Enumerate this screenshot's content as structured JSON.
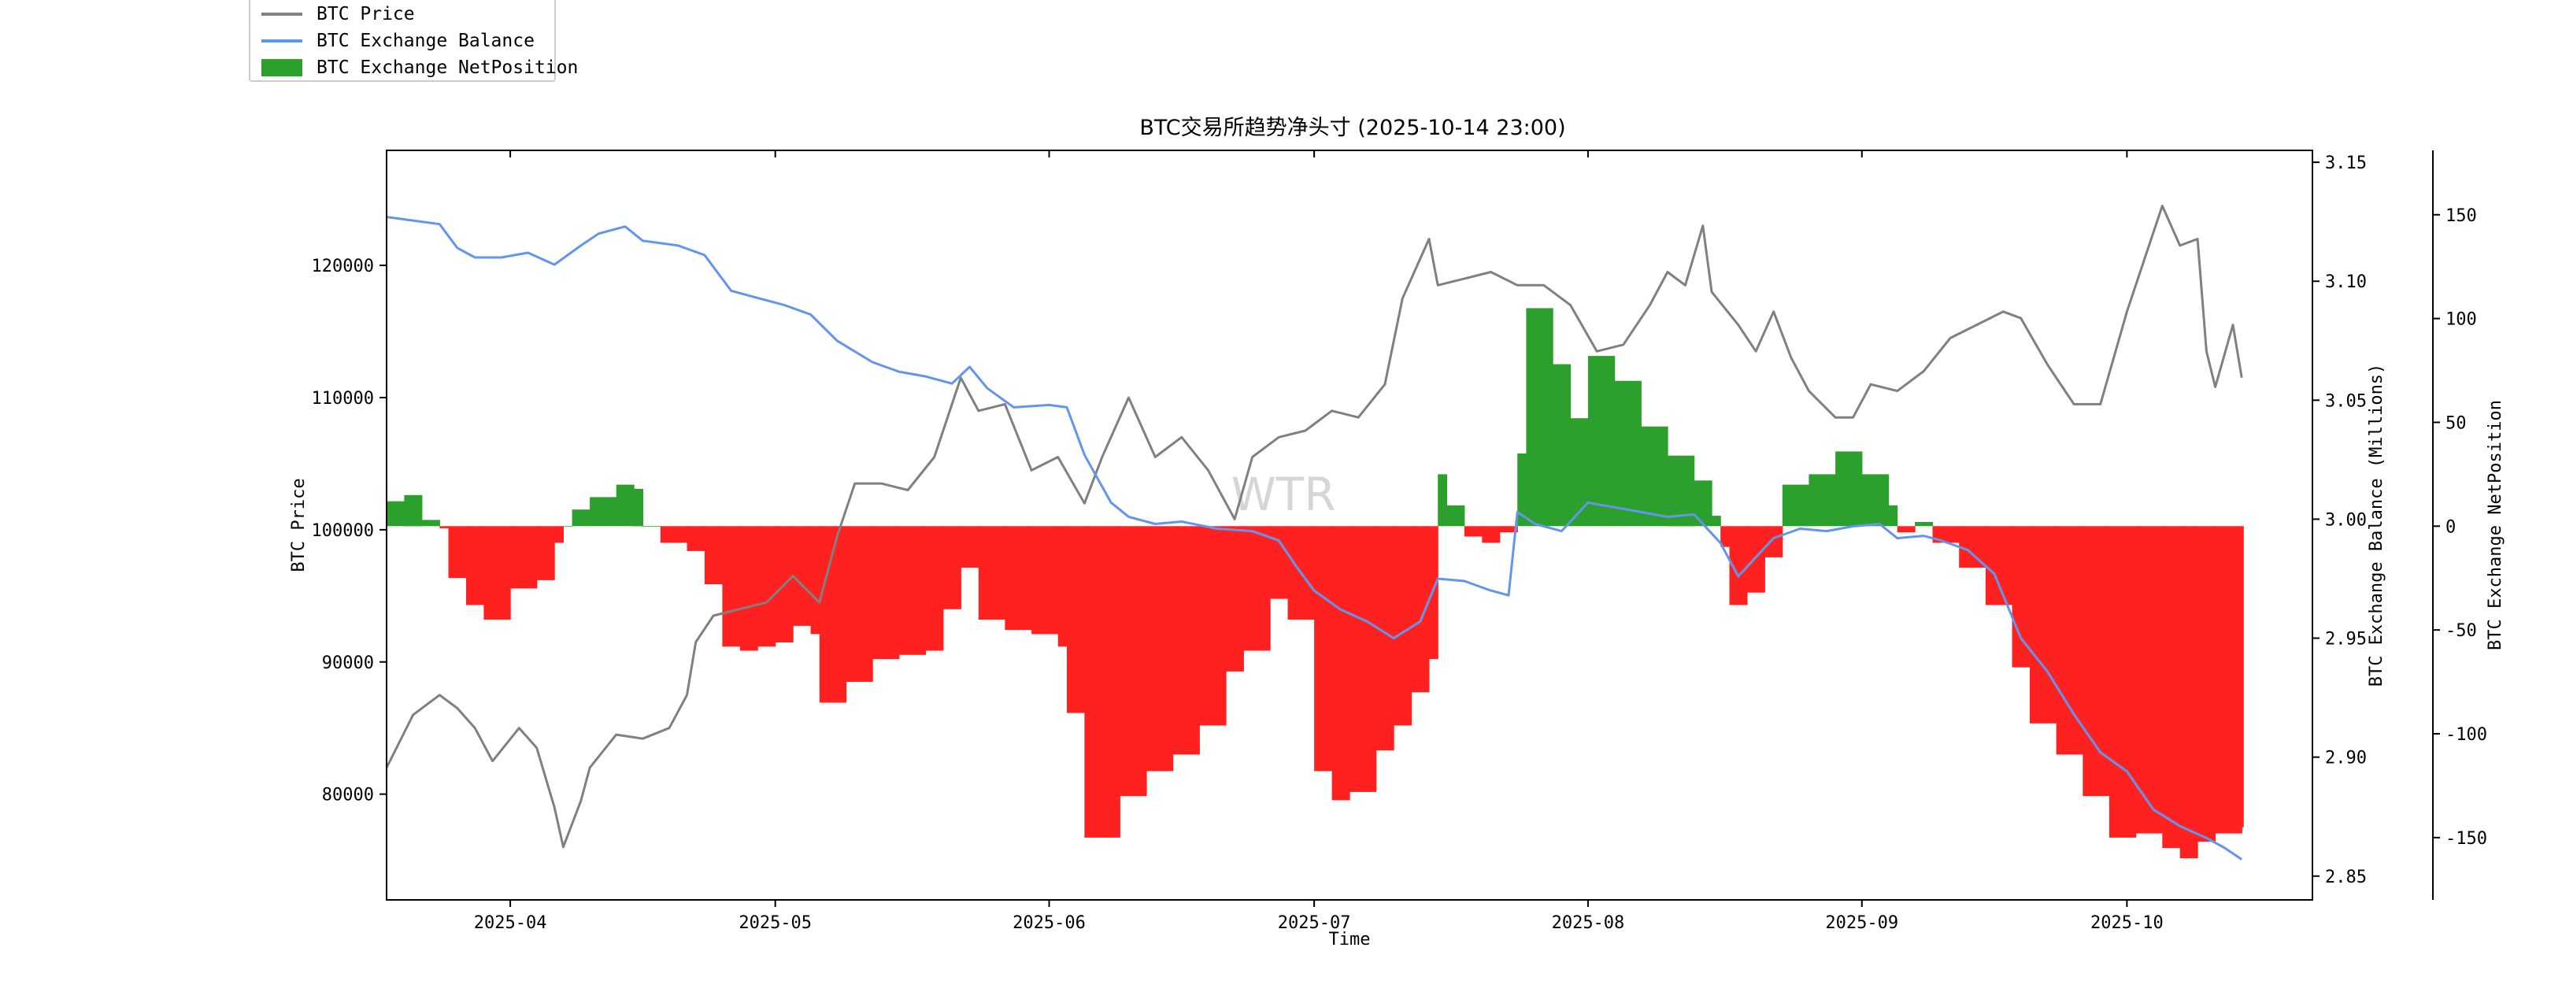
{
  "chart_data": {
    "type": "line",
    "title": "BTC交易所趋势净头寸 (2025-10-14 23:00)",
    "xlabel": "Time",
    "ylabel_left": "BTC Price",
    "ylabel_right": "BTC Exchange Balance (Millions)",
    "ylabel_right2": "BTC Exchange NetPosition",
    "watermark": "WTR",
    "x_range": [
      "2025-03-18",
      "2025-10-22"
    ],
    "x_ticks": [
      "2025-04",
      "2025-05",
      "2025-06",
      "2025-07",
      "2025-08",
      "2025-09",
      "2025-10"
    ],
    "x_tick_dates": [
      "2025-04-01",
      "2025-05-01",
      "2025-06-01",
      "2025-07-01",
      "2025-08-01",
      "2025-09-01",
      "2025-10-01"
    ],
    "ylim_left": [
      72000,
      128700
    ],
    "yticks_left": [
      80000,
      90000,
      100000,
      110000,
      120000
    ],
    "ylim_right": [
      2.84,
      3.155
    ],
    "yticks_right": [
      "2.85",
      "2.90",
      "2.95",
      "3.00",
      "3.05",
      "3.10",
      "3.15"
    ],
    "ylim_right2": [
      -180,
      181
    ],
    "yticks_right2": [
      -150,
      -100,
      -50,
      0,
      50,
      100,
      150
    ],
    "grid": false,
    "legend_position": "top-left",
    "colors": {
      "price": "#808080",
      "balance": "#6495ED",
      "net_positive": "#2CA02C",
      "net_negative": "#FF2020"
    },
    "series": [
      {
        "name": "BTC Price",
        "kind": "line",
        "axis": "left",
        "points": [
          [
            "2025-03-18",
            82000
          ],
          [
            "2025-03-21",
            86000
          ],
          [
            "2025-03-24",
            87500
          ],
          [
            "2025-03-26",
            86500
          ],
          [
            "2025-03-28",
            85000
          ],
          [
            "2025-03-30",
            82500
          ],
          [
            "2025-04-02",
            85000
          ],
          [
            "2025-04-04",
            83500
          ],
          [
            "2025-04-06",
            79000
          ],
          [
            "2025-04-07",
            76000
          ],
          [
            "2025-04-09",
            79500
          ],
          [
            "2025-04-10",
            82000
          ],
          [
            "2025-04-13",
            84500
          ],
          [
            "2025-04-16",
            84200
          ],
          [
            "2025-04-19",
            85000
          ],
          [
            "2025-04-21",
            87500
          ],
          [
            "2025-04-22",
            91500
          ],
          [
            "2025-04-24",
            93500
          ],
          [
            "2025-04-27",
            94000
          ],
          [
            "2025-04-30",
            94500
          ],
          [
            "2025-05-03",
            96500
          ],
          [
            "2025-05-06",
            94500
          ],
          [
            "2025-05-08",
            99500
          ],
          [
            "2025-05-10",
            103500
          ],
          [
            "2025-05-13",
            103500
          ],
          [
            "2025-05-16",
            103000
          ],
          [
            "2025-05-19",
            105500
          ],
          [
            "2025-05-21",
            109500
          ],
          [
            "2025-05-22",
            111500
          ],
          [
            "2025-05-24",
            109000
          ],
          [
            "2025-05-27",
            109500
          ],
          [
            "2025-05-30",
            104500
          ],
          [
            "2025-06-02",
            105500
          ],
          [
            "2025-06-05",
            102000
          ],
          [
            "2025-06-07",
            105500
          ],
          [
            "2025-06-10",
            110000
          ],
          [
            "2025-06-13",
            105500
          ],
          [
            "2025-06-16",
            107000
          ],
          [
            "2025-06-19",
            104500
          ],
          [
            "2025-06-22",
            100800
          ],
          [
            "2025-06-24",
            105500
          ],
          [
            "2025-06-27",
            107000
          ],
          [
            "2025-06-30",
            107500
          ],
          [
            "2025-07-03",
            109000
          ],
          [
            "2025-07-06",
            108500
          ],
          [
            "2025-07-09",
            111000
          ],
          [
            "2025-07-11",
            117500
          ],
          [
            "2025-07-14",
            122000
          ],
          [
            "2025-07-15",
            118500
          ],
          [
            "2025-07-18",
            119000
          ],
          [
            "2025-07-21",
            119500
          ],
          [
            "2025-07-24",
            118500
          ],
          [
            "2025-07-27",
            118500
          ],
          [
            "2025-07-30",
            117000
          ],
          [
            "2025-08-02",
            113500
          ],
          [
            "2025-08-05",
            114000
          ],
          [
            "2025-08-08",
            117000
          ],
          [
            "2025-08-10",
            119500
          ],
          [
            "2025-08-12",
            118500
          ],
          [
            "2025-08-14",
            123000
          ],
          [
            "2025-08-15",
            118000
          ],
          [
            "2025-08-18",
            115500
          ],
          [
            "2025-08-20",
            113500
          ],
          [
            "2025-08-22",
            116500
          ],
          [
            "2025-08-24",
            113000
          ],
          [
            "2025-08-26",
            110500
          ],
          [
            "2025-08-29",
            108500
          ],
          [
            "2025-08-31",
            108500
          ],
          [
            "2025-09-02",
            111000
          ],
          [
            "2025-09-05",
            110500
          ],
          [
            "2025-09-08",
            112000
          ],
          [
            "2025-09-11",
            114500
          ],
          [
            "2025-09-14",
            115500
          ],
          [
            "2025-09-17",
            116500
          ],
          [
            "2025-09-19",
            116000
          ],
          [
            "2025-09-22",
            112500
          ],
          [
            "2025-09-25",
            109500
          ],
          [
            "2025-09-28",
            109500
          ],
          [
            "2025-10-01",
            116500
          ],
          [
            "2025-10-03",
            120500
          ],
          [
            "2025-10-05",
            124500
          ],
          [
            "2025-10-07",
            121500
          ],
          [
            "2025-10-09",
            122000
          ],
          [
            "2025-10-10",
            113500
          ],
          [
            "2025-10-11",
            110800
          ],
          [
            "2025-10-13",
            115500
          ],
          [
            "2025-10-14",
            111500
          ]
        ]
      },
      {
        "name": "BTC Exchange Balance",
        "kind": "line",
        "axis": "right",
        "points": [
          [
            "2025-03-18",
            3.127
          ],
          [
            "2025-03-20",
            3.126
          ],
          [
            "2025-03-24",
            3.124
          ],
          [
            "2025-03-26",
            3.114
          ],
          [
            "2025-03-28",
            3.11
          ],
          [
            "2025-03-31",
            3.11
          ],
          [
            "2025-04-03",
            3.112
          ],
          [
            "2025-04-06",
            3.107
          ],
          [
            "2025-04-09",
            3.115
          ],
          [
            "2025-04-11",
            3.12
          ],
          [
            "2025-04-14",
            3.123
          ],
          [
            "2025-04-16",
            3.117
          ],
          [
            "2025-04-20",
            3.115
          ],
          [
            "2025-04-23",
            3.111
          ],
          [
            "2025-04-26",
            3.096
          ],
          [
            "2025-04-29",
            3.093
          ],
          [
            "2025-05-02",
            3.09
          ],
          [
            "2025-05-05",
            3.086
          ],
          [
            "2025-05-08",
            3.075
          ],
          [
            "2025-05-12",
            3.066
          ],
          [
            "2025-05-15",
            3.062
          ],
          [
            "2025-05-18",
            3.06
          ],
          [
            "2025-05-21",
            3.057
          ],
          [
            "2025-05-23",
            3.064
          ],
          [
            "2025-05-25",
            3.055
          ],
          [
            "2025-05-28",
            3.047
          ],
          [
            "2025-06-01",
            3.048
          ],
          [
            "2025-06-03",
            3.047
          ],
          [
            "2025-06-05",
            3.027
          ],
          [
            "2025-06-08",
            3.007
          ],
          [
            "2025-06-10",
            3.001
          ],
          [
            "2025-06-13",
            2.998
          ],
          [
            "2025-06-16",
            2.999
          ],
          [
            "2025-06-20",
            2.996
          ],
          [
            "2025-06-24",
            2.995
          ],
          [
            "2025-06-27",
            2.991
          ],
          [
            "2025-06-29",
            2.98
          ],
          [
            "2025-07-01",
            2.97
          ],
          [
            "2025-07-04",
            2.962
          ],
          [
            "2025-07-07",
            2.957
          ],
          [
            "2025-07-10",
            2.95
          ],
          [
            "2025-07-13",
            2.957
          ],
          [
            "2025-07-15",
            2.975
          ],
          [
            "2025-07-18",
            2.974
          ],
          [
            "2025-07-21",
            2.97
          ],
          [
            "2025-07-23",
            2.968
          ],
          [
            "2025-07-24",
            3.003
          ],
          [
            "2025-07-26",
            2.998
          ],
          [
            "2025-07-29",
            2.995
          ],
          [
            "2025-08-01",
            3.007
          ],
          [
            "2025-08-04",
            3.005
          ],
          [
            "2025-08-07",
            3.003
          ],
          [
            "2025-08-10",
            3.001
          ],
          [
            "2025-08-13",
            3.002
          ],
          [
            "2025-08-16",
            2.99
          ],
          [
            "2025-08-18",
            2.976
          ],
          [
            "2025-08-20",
            2.984
          ],
          [
            "2025-08-22",
            2.992
          ],
          [
            "2025-08-25",
            2.996
          ],
          [
            "2025-08-28",
            2.995
          ],
          [
            "2025-08-31",
            2.997
          ],
          [
            "2025-09-03",
            2.998
          ],
          [
            "2025-09-05",
            2.992
          ],
          [
            "2025-09-08",
            2.993
          ],
          [
            "2025-09-10",
            2.991
          ],
          [
            "2025-09-13",
            2.987
          ],
          [
            "2025-09-16",
            2.977
          ],
          [
            "2025-09-19",
            2.95
          ],
          [
            "2025-09-22",
            2.936
          ],
          [
            "2025-09-25",
            2.918
          ],
          [
            "2025-09-28",
            2.902
          ],
          [
            "2025-10-01",
            2.894
          ],
          [
            "2025-10-04",
            2.878
          ],
          [
            "2025-10-07",
            2.871
          ],
          [
            "2025-10-10",
            2.866
          ],
          [
            "2025-10-12",
            2.862
          ],
          [
            "2025-10-14",
            2.857
          ]
        ]
      },
      {
        "name": "BTC Exchange NetPosition",
        "kind": "bar",
        "axis": "right2",
        "points": [
          [
            "2025-03-18",
            12
          ],
          [
            "2025-03-20",
            15
          ],
          [
            "2025-03-22",
            3
          ],
          [
            "2025-03-24",
            -1
          ],
          [
            "2025-03-25",
            -25
          ],
          [
            "2025-03-27",
            -38
          ],
          [
            "2025-03-29",
            -45
          ],
          [
            "2025-04-01",
            -30
          ],
          [
            "2025-04-04",
            -26
          ],
          [
            "2025-04-06",
            -8
          ],
          [
            "2025-04-07",
            0
          ],
          [
            "2025-04-08",
            8
          ],
          [
            "2025-04-10",
            14
          ],
          [
            "2025-04-13",
            20
          ],
          [
            "2025-04-15",
            18
          ],
          [
            "2025-04-16",
            0
          ],
          [
            "2025-04-18",
            -8
          ],
          [
            "2025-04-21",
            -12
          ],
          [
            "2025-04-23",
            -28
          ],
          [
            "2025-04-25",
            -58
          ],
          [
            "2025-04-27",
            -60
          ],
          [
            "2025-04-29",
            -58
          ],
          [
            "2025-05-01",
            -56
          ],
          [
            "2025-05-03",
            -48
          ],
          [
            "2025-05-05",
            -52
          ],
          [
            "2025-05-06",
            -85
          ],
          [
            "2025-05-09",
            -75
          ],
          [
            "2025-05-12",
            -64
          ],
          [
            "2025-05-15",
            -62
          ],
          [
            "2025-05-18",
            -60
          ],
          [
            "2025-05-20",
            -40
          ],
          [
            "2025-05-22",
            -20
          ],
          [
            "2025-05-24",
            -45
          ],
          [
            "2025-05-27",
            -50
          ],
          [
            "2025-05-30",
            -52
          ],
          [
            "2025-06-02",
            -58
          ],
          [
            "2025-06-03",
            -90
          ],
          [
            "2025-06-05",
            -150
          ],
          [
            "2025-06-09",
            -130
          ],
          [
            "2025-06-12",
            -118
          ],
          [
            "2025-06-15",
            -110
          ],
          [
            "2025-06-18",
            -96
          ],
          [
            "2025-06-21",
            -70
          ],
          [
            "2025-06-23",
            -60
          ],
          [
            "2025-06-26",
            -35
          ],
          [
            "2025-06-28",
            -45
          ],
          [
            "2025-07-01",
            -118
          ],
          [
            "2025-07-03",
            -132
          ],
          [
            "2025-07-05",
            -128
          ],
          [
            "2025-07-08",
            -108
          ],
          [
            "2025-07-10",
            -96
          ],
          [
            "2025-07-12",
            -80
          ],
          [
            "2025-07-14",
            -64
          ],
          [
            "2025-07-15",
            25
          ],
          [
            "2025-07-16",
            10
          ],
          [
            "2025-07-18",
            -5
          ],
          [
            "2025-07-20",
            -8
          ],
          [
            "2025-07-22",
            -3
          ],
          [
            "2025-07-23",
            -3
          ],
          [
            "2025-07-24",
            35
          ],
          [
            "2025-07-25",
            105
          ],
          [
            "2025-07-28",
            78
          ],
          [
            "2025-07-30",
            52
          ],
          [
            "2025-08-01",
            82
          ],
          [
            "2025-08-04",
            70
          ],
          [
            "2025-08-07",
            48
          ],
          [
            "2025-08-10",
            34
          ],
          [
            "2025-08-13",
            22
          ],
          [
            "2025-08-15",
            5
          ],
          [
            "2025-08-16",
            -10
          ],
          [
            "2025-08-17",
            -38
          ],
          [
            "2025-08-19",
            -32
          ],
          [
            "2025-08-21",
            -15
          ],
          [
            "2025-08-23",
            20
          ],
          [
            "2025-08-26",
            25
          ],
          [
            "2025-08-29",
            36
          ],
          [
            "2025-09-01",
            25
          ],
          [
            "2025-09-04",
            10
          ],
          [
            "2025-09-05",
            -3
          ],
          [
            "2025-09-07",
            2
          ],
          [
            "2025-09-09",
            -8
          ],
          [
            "2025-09-12",
            -20
          ],
          [
            "2025-09-15",
            -38
          ],
          [
            "2025-09-18",
            -68
          ],
          [
            "2025-09-20",
            -95
          ],
          [
            "2025-09-23",
            -110
          ],
          [
            "2025-09-26",
            -130
          ],
          [
            "2025-09-29",
            -150
          ],
          [
            "2025-10-02",
            -148
          ],
          [
            "2025-10-05",
            -155
          ],
          [
            "2025-10-07",
            -160
          ],
          [
            "2025-10-09",
            -152
          ],
          [
            "2025-10-11",
            -148
          ],
          [
            "2025-10-14",
            -145
          ]
        ]
      }
    ]
  }
}
